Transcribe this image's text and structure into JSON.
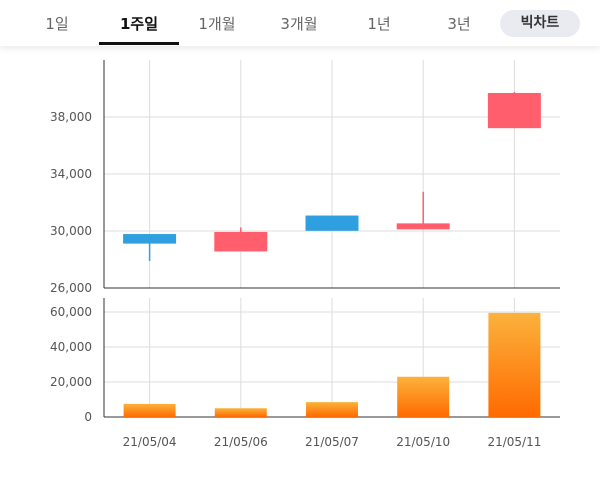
{
  "tabs": [
    {
      "label": "1일",
      "active": false
    },
    {
      "label": "1주일",
      "active": true
    },
    {
      "label": "1개월",
      "active": false
    },
    {
      "label": "3개월",
      "active": false
    },
    {
      "label": "1년",
      "active": false
    },
    {
      "label": "3년",
      "active": false
    }
  ],
  "big_chart_button": "빅차트",
  "colors": {
    "up": "#ff5f6d",
    "down": "#2e9fdf",
    "volume_top": "#fbb23c",
    "volume_bottom": "#ff6a00",
    "grid": "#dddddd",
    "axis": "#333333"
  },
  "chart_data": [
    {
      "type": "candlestick",
      "categories": [
        "21/05/04",
        "21/05/06",
        "21/05/07",
        "21/05/10",
        "21/05/11"
      ],
      "ohlc": [
        {
          "open": 29750,
          "high": 29750,
          "low": 27900,
          "close": 29150
        },
        {
          "open": 28600,
          "high": 30250,
          "low": 28600,
          "close": 29900
        },
        {
          "open": 31050,
          "high": 31050,
          "low": 30050,
          "close": 30050
        },
        {
          "open": 30150,
          "high": 32750,
          "low": 30150,
          "close": 30500
        },
        {
          "open": 37250,
          "high": 39750,
          "low": 37250,
          "close": 39650
        }
      ],
      "ylim": [
        26000,
        42000
      ],
      "yticks": [
        26000,
        30000,
        34000,
        38000
      ],
      "ytick_labels": [
        "26,000",
        "30,000",
        "34,000",
        "38,000"
      ],
      "grid": true
    },
    {
      "type": "bar",
      "categories": [
        "21/05/04",
        "21/05/06",
        "21/05/07",
        "21/05/10",
        "21/05/11"
      ],
      "values": [
        7500,
        5000,
        8500,
        23000,
        59500
      ],
      "ylim": [
        0,
        68000
      ],
      "yticks": [
        0,
        20000,
        40000,
        60000
      ],
      "ytick_labels": [
        "0",
        "20,000",
        "40,000",
        "60,000"
      ],
      "grid": true
    }
  ]
}
